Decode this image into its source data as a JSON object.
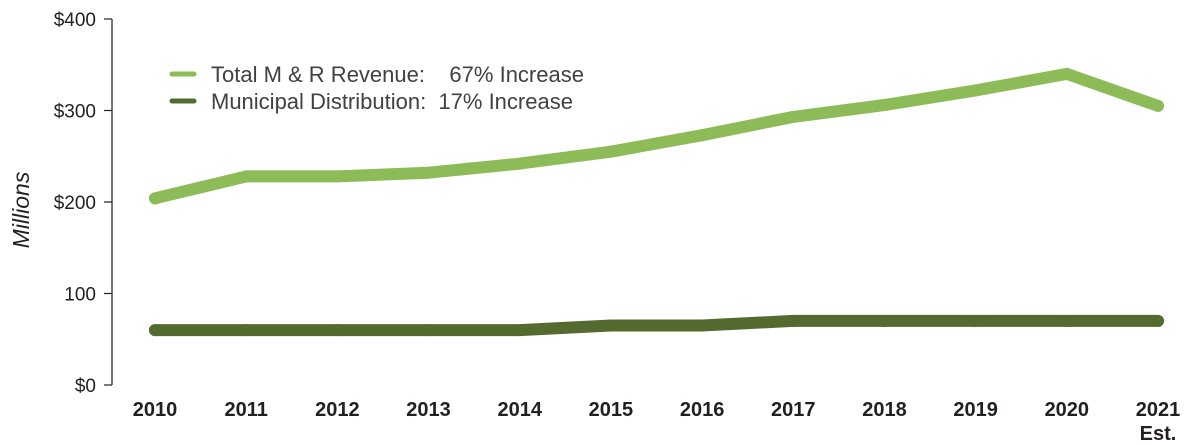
{
  "chart_data": {
    "type": "line",
    "title": "",
    "xlabel": "",
    "ylabel": "Millions",
    "ylim": [
      0,
      400
    ],
    "y_ticks": [
      {
        "value": 0,
        "label": "$0"
      },
      {
        "value": 100,
        "label": "100"
      },
      {
        "value": 200,
        "label": "$200"
      },
      {
        "value": 300,
        "label": "$300"
      },
      {
        "value": 400,
        "label": "$400"
      }
    ],
    "categories": [
      "2010",
      "2011",
      "2012",
      "2013",
      "2014",
      "2015",
      "2016",
      "2017",
      "2018",
      "2019",
      "2020",
      "2021"
    ],
    "category_sublabels": [
      "",
      "",
      "",
      "",
      "",
      "",
      "",
      "",
      "",
      "",
      "",
      "Est."
    ],
    "grid": false,
    "legend_position": "top-left",
    "series": [
      {
        "name": "Total M & R Revenue:    67% Increase",
        "color": "#8dbb58",
        "values": [
          204,
          228,
          228,
          232,
          242,
          255,
          273,
          293,
          306,
          322,
          340,
          305
        ]
      },
      {
        "name": "Municipal Distribution:  17% Increase",
        "color": "#546b2f",
        "values": [
          60,
          60,
          60,
          60,
          60,
          65,
          65,
          70,
          70,
          70,
          70,
          70
        ]
      }
    ]
  }
}
